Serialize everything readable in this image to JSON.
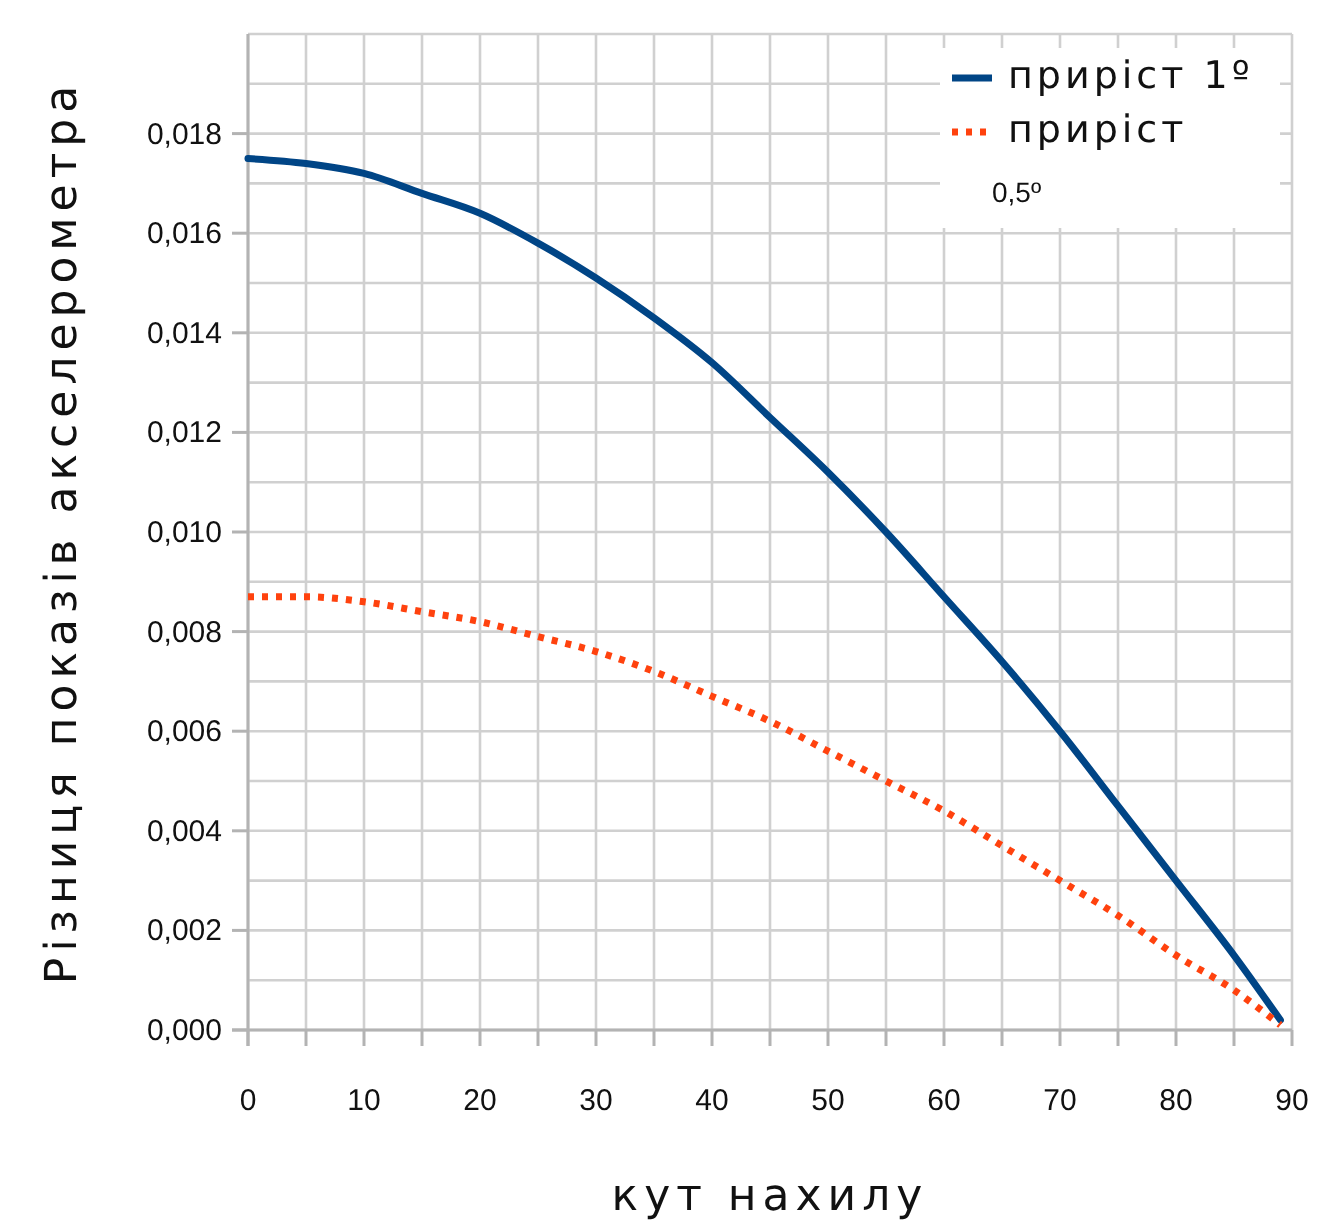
{
  "chart_data": {
    "type": "line",
    "xlabel": "кут нахилу",
    "ylabel": "Різниця показів акселерометра",
    "x": [
      0,
      5,
      10,
      15,
      20,
      25,
      30,
      35,
      40,
      45,
      50,
      55,
      60,
      65,
      70,
      75,
      80,
      85,
      89
    ],
    "series": [
      {
        "name": "приріст 1º",
        "color": "#004586",
        "line_style": "solid",
        "values": [
          0.0175,
          0.0174,
          0.0172,
          0.0168,
          0.0164,
          0.0158,
          0.0151,
          0.0143,
          0.0134,
          0.0123,
          0.0112,
          0.01,
          0.0087,
          0.0074,
          0.006,
          0.0045,
          0.003,
          0.0015,
          0.0002
        ]
      },
      {
        "name": "приріст 0,5º",
        "color": "#ff420e",
        "line_style": "dotted",
        "values": [
          0.0087,
          0.0087,
          0.0086,
          0.0084,
          0.0082,
          0.0079,
          0.0076,
          0.0072,
          0.0067,
          0.0062,
          0.0056,
          0.005,
          0.0044,
          0.0037,
          0.003,
          0.0023,
          0.0015,
          0.0008,
          0.0001
        ]
      }
    ],
    "xlim": [
      0,
      90
    ],
    "ylim": [
      0,
      0.02
    ],
    "xticks": [
      0,
      {
        "value": 5,
        "label": null
      },
      10,
      {
        "value": 15,
        "label": null
      },
      20,
      {
        "value": 25,
        "label": null
      },
      30,
      {
        "value": 35,
        "label": null
      },
      40,
      {
        "value": 45,
        "label": null
      },
      50,
      {
        "value": 55,
        "label": null
      },
      60,
      {
        "value": 65,
        "label": null
      },
      70,
      {
        "value": 75,
        "label": null
      },
      80,
      {
        "value": 85,
        "label": null
      },
      90
    ],
    "yticks": [
      {
        "value": 0,
        "label": "0,000"
      },
      {
        "value": 0.001,
        "label": null
      },
      {
        "value": 0.002,
        "label": "0,002"
      },
      {
        "value": 0.003,
        "label": null
      },
      {
        "value": 0.004,
        "label": "0,004"
      },
      {
        "value": 0.005,
        "label": null
      },
      {
        "value": 0.006,
        "label": "0,006"
      },
      {
        "value": 0.007,
        "label": null
      },
      {
        "value": 0.008,
        "label": "0,008"
      },
      {
        "value": 0.009,
        "label": null
      },
      {
        "value": 0.01,
        "label": "0,010"
      },
      {
        "value": 0.011,
        "label": null
      },
      {
        "value": 0.012,
        "label": "0,012"
      },
      {
        "value": 0.013,
        "label": null
      },
      {
        "value": 0.014,
        "label": "0,014"
      },
      {
        "value": 0.015,
        "label": null
      },
      {
        "value": 0.016,
        "label": "0,016"
      },
      {
        "value": 0.017,
        "label": null
      },
      {
        "value": 0.018,
        "label": "0,018"
      },
      {
        "value": 0.019,
        "label": null
      },
      {
        "value": 0.02,
        "label": null
      }
    ],
    "grid": true,
    "legend": "top right",
    "marker": "none"
  }
}
